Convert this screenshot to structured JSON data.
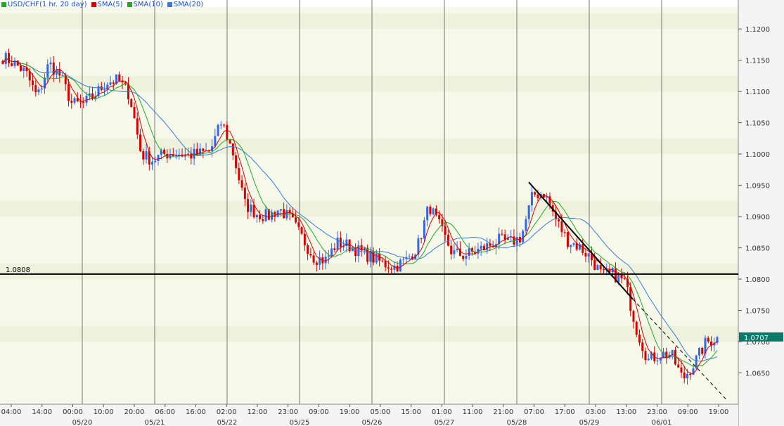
{
  "chart_data": {
    "type": "candlestick",
    "title": "USD/CHF(1 hr. 20 day)",
    "legend": [
      {
        "label": "USD/CHF(1 hr. 20 day)",
        "color": "#22aa22"
      },
      {
        "label": "SMA(5)",
        "color": "#dd0000"
      },
      {
        "label": "SMA(10)",
        "color": "#22aa22"
      },
      {
        "label": "SMA(20)",
        "color": "#3a7bd5"
      }
    ],
    "colors": {
      "up": "#3366ee",
      "down": "#dd0000",
      "sma5": "#dd0000",
      "sma10": "#22aa22",
      "sma20": "#3a7bd5",
      "price_tag": "#0b7a6a"
    },
    "ylim": [
      1.06,
      1.1235
    ],
    "y_ticks": [
      "1.1200",
      "1.1150",
      "1.1100",
      "1.1050",
      "1.1000",
      "1.0950",
      "1.0900",
      "1.0850",
      "1.0800",
      "1.0750",
      "1.0700",
      "1.0650"
    ],
    "x_time_labels": [
      "04:00",
      "14:00",
      "00:00",
      "10:00",
      "20:00",
      "06:00",
      "16:00",
      "02:00",
      "12:00",
      "23:00",
      "09:00",
      "19:00",
      "05:00",
      "15:00",
      "01:00",
      "11:00",
      "21:00",
      "07:00",
      "17:00",
      "03:00",
      "13:00",
      "23:00",
      "09:00",
      "19:00"
    ],
    "x_date_labels": [
      "05/20",
      "05/21",
      "05/22",
      "05/25",
      "05/26",
      "05/27",
      "05/28",
      "05/29",
      "06/01"
    ],
    "horizontal_line": {
      "value": 1.0808,
      "label": "1.0808"
    },
    "last_price": {
      "value": 1.0707,
      "label": "1.0707"
    },
    "trendline": {
      "from": 1.0955,
      "to": 1.0768,
      "extended_to": 1.0605
    },
    "price_path": [
      1.1155,
      1.1145,
      1.113,
      1.109,
      1.1145,
      1.1125,
      1.108,
      1.108,
      1.1095,
      1.1115,
      1.1118,
      1.1095,
      1.1,
      1.099,
      1.1,
      1.1002,
      1.0998,
      1.1,
      1.1005,
      1.1052,
      1.1,
      1.092,
      1.0905,
      1.09,
      1.0912,
      1.0895,
      1.0865,
      1.0835,
      1.083,
      1.0858,
      1.0854,
      1.0844,
      1.0835,
      1.0825,
      1.082,
      1.083,
      1.0852,
      1.0918,
      1.088,
      1.0842,
      1.0838,
      1.0844,
      1.0852,
      1.0862,
      1.0858,
      1.0868,
      1.0935,
      1.0938,
      1.0895,
      1.0862,
      1.0852,
      1.0835,
      1.0805,
      1.0808,
      1.0795,
      1.072,
      1.067,
      1.068,
      1.068,
      1.064,
      1.0665,
      1.0698,
      1.0707
    ]
  }
}
